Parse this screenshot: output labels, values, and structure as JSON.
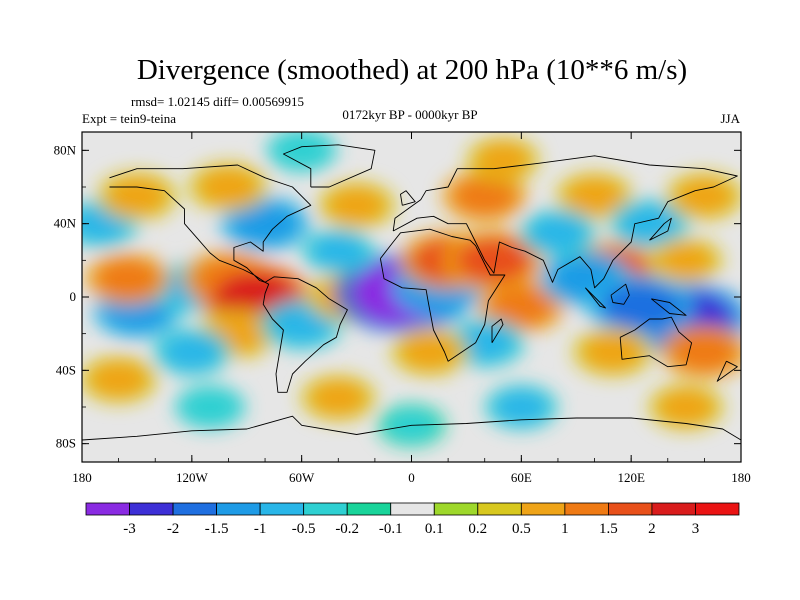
{
  "chart_data": {
    "type": "heatmap",
    "title": "Divergence (smoothed) at 200 hPa (10**6 m/s)",
    "stats": "rmsd= 1.02145 diff= 0.00569915",
    "experiment": "Expt = tein9-teina",
    "period": "0172kyr BP - 0000kyr BP",
    "season": "JJA",
    "x_range": [
      -180,
      180
    ],
    "y_range": [
      -90,
      90
    ],
    "x_ticks": [
      {
        "value": -180,
        "label": "180"
      },
      {
        "value": -120,
        "label": "120W"
      },
      {
        "value": -60,
        "label": "60W"
      },
      {
        "value": 0,
        "label": "0"
      },
      {
        "value": 60,
        "label": "60E"
      },
      {
        "value": 120,
        "label": "120E"
      },
      {
        "value": 180,
        "label": "180"
      }
    ],
    "y_ticks": [
      {
        "value": 80,
        "label": "80N"
      },
      {
        "value": 40,
        "label": "40N"
      },
      {
        "value": 0,
        "label": "0"
      },
      {
        "value": -40,
        "label": "40S"
      },
      {
        "value": -80,
        "label": "80S"
      }
    ],
    "colorbar": {
      "levels": [
        "-3",
        "-2",
        "-1.5",
        "-1",
        "-0.5",
        "-0.2",
        "-0.1",
        "0.1",
        "0.2",
        "0.5",
        "1",
        "1.5",
        "2",
        "3"
      ],
      "colors": [
        "#8a2be2",
        "#3d2fd6",
        "#1f6fe0",
        "#1e9be6",
        "#29b6e8",
        "#2ed0d2",
        "#19d49a",
        "#e6e6e6",
        "#9ed82b",
        "#d8c81f",
        "#efa418",
        "#ef7a14",
        "#e8501a",
        "#d91c1c",
        "#ea1313"
      ]
    },
    "features": [
      {
        "lon": -150,
        "lat": -8,
        "value": -1.2
      },
      {
        "lon": -120,
        "lat": 5,
        "value": -1.0
      },
      {
        "lon": -155,
        "lat": 10,
        "value": 1.1
      },
      {
        "lon": -100,
        "lat": 10,
        "value": 1.4
      },
      {
        "lon": -85,
        "lat": 0,
        "value": 2.2
      },
      {
        "lon": -95,
        "lat": -20,
        "value": 0.9
      },
      {
        "lon": -120,
        "lat": -30,
        "value": -0.8
      },
      {
        "lon": -60,
        "lat": -15,
        "value": -1.0
      },
      {
        "lon": -35,
        "lat": 0,
        "value": 0.9
      },
      {
        "lon": -5,
        "lat": 2,
        "value": -3.2
      },
      {
        "lon": 15,
        "lat": 5,
        "value": -1.5
      },
      {
        "lon": 20,
        "lat": 20,
        "value": 1.6
      },
      {
        "lon": 45,
        "lat": 20,
        "value": 1.8
      },
      {
        "lon": 60,
        "lat": -5,
        "value": 1.2
      },
      {
        "lon": 40,
        "lat": -25,
        "value": -0.9
      },
      {
        "lon": 10,
        "lat": -30,
        "value": 0.8
      },
      {
        "lon": 110,
        "lat": 15,
        "value": 1.5
      },
      {
        "lon": 95,
        "lat": 10,
        "value": -1.4
      },
      {
        "lon": 150,
        "lat": -12,
        "value": -2.8
      },
      {
        "lon": 125,
        "lat": -5,
        "value": -2.0
      },
      {
        "lon": 110,
        "lat": -30,
        "value": 0.9
      },
      {
        "lon": 160,
        "lat": -30,
        "value": 1.2
      },
      {
        "lon": -80,
        "lat": 40,
        "value": -1.3
      },
      {
        "lon": -100,
        "lat": 60,
        "value": 0.9
      },
      {
        "lon": -30,
        "lat": 50,
        "value": 0.8
      },
      {
        "lon": 40,
        "lat": 55,
        "value": 1.1
      },
      {
        "lon": 100,
        "lat": 55,
        "value": 0.8
      },
      {
        "lon": 130,
        "lat": 40,
        "value": -0.9
      },
      {
        "lon": 160,
        "lat": 55,
        "value": 0.8
      },
      {
        "lon": -170,
        "lat": 40,
        "value": -0.8
      },
      {
        "lon": -150,
        "lat": 55,
        "value": 0.9
      },
      {
        "lon": -40,
        "lat": -55,
        "value": 0.7
      },
      {
        "lon": 60,
        "lat": -60,
        "value": -0.6
      },
      {
        "lon": 150,
        "lat": -60,
        "value": 0.7
      },
      {
        "lon": -110,
        "lat": -60,
        "value": -0.5
      },
      {
        "lon": 0,
        "lat": -70,
        "value": -0.4
      },
      {
        "lon": -160,
        "lat": -45,
        "value": 0.8
      },
      {
        "lon": -40,
        "lat": 25,
        "value": -0.6
      },
      {
        "lon": 80,
        "lat": 35,
        "value": -0.8
      },
      {
        "lon": 50,
        "lat": 75,
        "value": 0.6
      },
      {
        "lon": -60,
        "lat": 80,
        "value": -0.5
      },
      {
        "lon": 150,
        "lat": 20,
        "value": 0.6
      }
    ],
    "coastlines": [
      {
        "name": "north-america",
        "points": [
          [
            -165,
            65
          ],
          [
            -150,
            70
          ],
          [
            -125,
            70
          ],
          [
            -95,
            72
          ],
          [
            -80,
            65
          ],
          [
            -65,
            60
          ],
          [
            -55,
            50
          ],
          [
            -68,
            44
          ],
          [
            -76,
            37
          ],
          [
            -81,
            30
          ],
          [
            -81,
            25
          ],
          [
            -88,
            30
          ],
          [
            -97,
            27
          ],
          [
            -97,
            20
          ],
          [
            -90,
            16
          ],
          [
            -83,
            9
          ],
          [
            -80,
            8
          ],
          [
            -86,
            12
          ],
          [
            -92,
            15
          ],
          [
            -105,
            20
          ],
          [
            -110,
            24
          ],
          [
            -117,
            32
          ],
          [
            -124,
            40
          ],
          [
            -124,
            48
          ],
          [
            -135,
            58
          ],
          [
            -150,
            60
          ],
          [
            -165,
            60
          ]
        ]
      },
      {
        "name": "greenland",
        "points": [
          [
            -55,
            60
          ],
          [
            -45,
            60
          ],
          [
            -22,
            70
          ],
          [
            -20,
            80
          ],
          [
            -40,
            83
          ],
          [
            -60,
            82
          ],
          [
            -70,
            78
          ],
          [
            -55,
            70
          ],
          [
            -55,
            60
          ]
        ]
      },
      {
        "name": "south-america",
        "points": [
          [
            -80,
            8
          ],
          [
            -75,
            11
          ],
          [
            -62,
            10
          ],
          [
            -52,
            5
          ],
          [
            -45,
            -1
          ],
          [
            -35,
            -7
          ],
          [
            -39,
            -15
          ],
          [
            -41,
            -22
          ],
          [
            -48,
            -26
          ],
          [
            -58,
            -35
          ],
          [
            -65,
            -42
          ],
          [
            -68,
            -52
          ],
          [
            -73,
            -52
          ],
          [
            -74,
            -42
          ],
          [
            -72,
            -30
          ],
          [
            -70,
            -18
          ],
          [
            -76,
            -12
          ],
          [
            -81,
            -4
          ],
          [
            -80,
            2
          ],
          [
            -78,
            7
          ],
          [
            -80,
            8
          ]
        ]
      },
      {
        "name": "africa",
        "points": [
          [
            -17,
            21
          ],
          [
            -10,
            30
          ],
          [
            -6,
            35
          ],
          [
            10,
            37
          ],
          [
            22,
            33
          ],
          [
            32,
            31
          ],
          [
            35,
            28
          ],
          [
            43,
            12
          ],
          [
            51,
            12
          ],
          [
            42,
            -2
          ],
          [
            40,
            -15
          ],
          [
            35,
            -25
          ],
          [
            20,
            -35
          ],
          [
            18,
            -30
          ],
          [
            12,
            -18
          ],
          [
            9,
            -2
          ],
          [
            8,
            4
          ],
          [
            -5,
            5
          ],
          [
            -15,
            10
          ],
          [
            -17,
            21
          ]
        ]
      },
      {
        "name": "eurasia",
        "points": [
          [
            -10,
            36
          ],
          [
            -9,
            43
          ],
          [
            -2,
            48
          ],
          [
            5,
            53
          ],
          [
            8,
            58
          ],
          [
            20,
            60
          ],
          [
            25,
            70
          ],
          [
            45,
            70
          ],
          [
            70,
            73
          ],
          [
            100,
            77
          ],
          [
            130,
            72
          ],
          [
            160,
            70
          ],
          [
            178,
            66
          ],
          [
            165,
            60
          ],
          [
            155,
            58
          ],
          [
            140,
            52
          ],
          [
            135,
            43
          ],
          [
            122,
            40
          ],
          [
            120,
            30
          ],
          [
            110,
            20
          ],
          [
            105,
            10
          ],
          [
            100,
            5
          ],
          [
            98,
            15
          ],
          [
            92,
            22
          ],
          [
            80,
            15
          ],
          [
            77,
            8
          ],
          [
            72,
            20
          ],
          [
            62,
            25
          ],
          [
            55,
            27
          ],
          [
            48,
            30
          ],
          [
            45,
            13
          ],
          [
            40,
            20
          ],
          [
            35,
            30
          ],
          [
            30,
            40
          ],
          [
            20,
            40
          ],
          [
            12,
            44
          ],
          [
            3,
            43
          ],
          [
            -10,
            36
          ]
        ]
      },
      {
        "name": "australia",
        "points": [
          [
            114,
            -22
          ],
          [
            122,
            -18
          ],
          [
            130,
            -12
          ],
          [
            137,
            -12
          ],
          [
            142,
            -11
          ],
          [
            146,
            -19
          ],
          [
            153,
            -25
          ],
          [
            150,
            -37
          ],
          [
            140,
            -38
          ],
          [
            130,
            -32
          ],
          [
            115,
            -34
          ],
          [
            114,
            -22
          ]
        ]
      },
      {
        "name": "antarctica",
        "points": [
          [
            -180,
            -78
          ],
          [
            -150,
            -76
          ],
          [
            -120,
            -73
          ],
          [
            -90,
            -72
          ],
          [
            -65,
            -65
          ],
          [
            -60,
            -70
          ],
          [
            -30,
            -75
          ],
          [
            0,
            -70
          ],
          [
            30,
            -69
          ],
          [
            60,
            -67
          ],
          [
            90,
            -66
          ],
          [
            120,
            -66
          ],
          [
            150,
            -69
          ],
          [
            170,
            -72
          ],
          [
            180,
            -78
          ]
        ]
      },
      {
        "name": "borneo",
        "points": [
          [
            109,
            1
          ],
          [
            117,
            7
          ],
          [
            119,
            1
          ],
          [
            116,
            -4
          ],
          [
            110,
            -3
          ],
          [
            109,
            1
          ]
        ]
      },
      {
        "name": "new-guinea",
        "points": [
          [
            131,
            -1
          ],
          [
            141,
            -3
          ],
          [
            150,
            -10
          ],
          [
            141,
            -9
          ],
          [
            131,
            -1
          ]
        ]
      },
      {
        "name": "sumatra",
        "points": [
          [
            95,
            5
          ],
          [
            106,
            -6
          ],
          [
            103,
            -5
          ],
          [
            95,
            5
          ]
        ]
      },
      {
        "name": "madagascar",
        "points": [
          [
            44,
            -25
          ],
          [
            50,
            -15
          ],
          [
            49,
            -12
          ],
          [
            44,
            -16
          ],
          [
            44,
            -25
          ]
        ]
      },
      {
        "name": "uk",
        "points": [
          [
            -5,
            50
          ],
          [
            2,
            52
          ],
          [
            -3,
            58
          ],
          [
            -6,
            56
          ],
          [
            -5,
            50
          ]
        ]
      },
      {
        "name": "japan",
        "points": [
          [
            130,
            31
          ],
          [
            140,
            36
          ],
          [
            142,
            43
          ],
          [
            138,
            40
          ],
          [
            130,
            31
          ]
        ]
      },
      {
        "name": "new-zealand",
        "points": [
          [
            172,
            -35
          ],
          [
            178,
            -38
          ],
          [
            167,
            -46
          ],
          [
            172,
            -35
          ]
        ]
      }
    ]
  }
}
